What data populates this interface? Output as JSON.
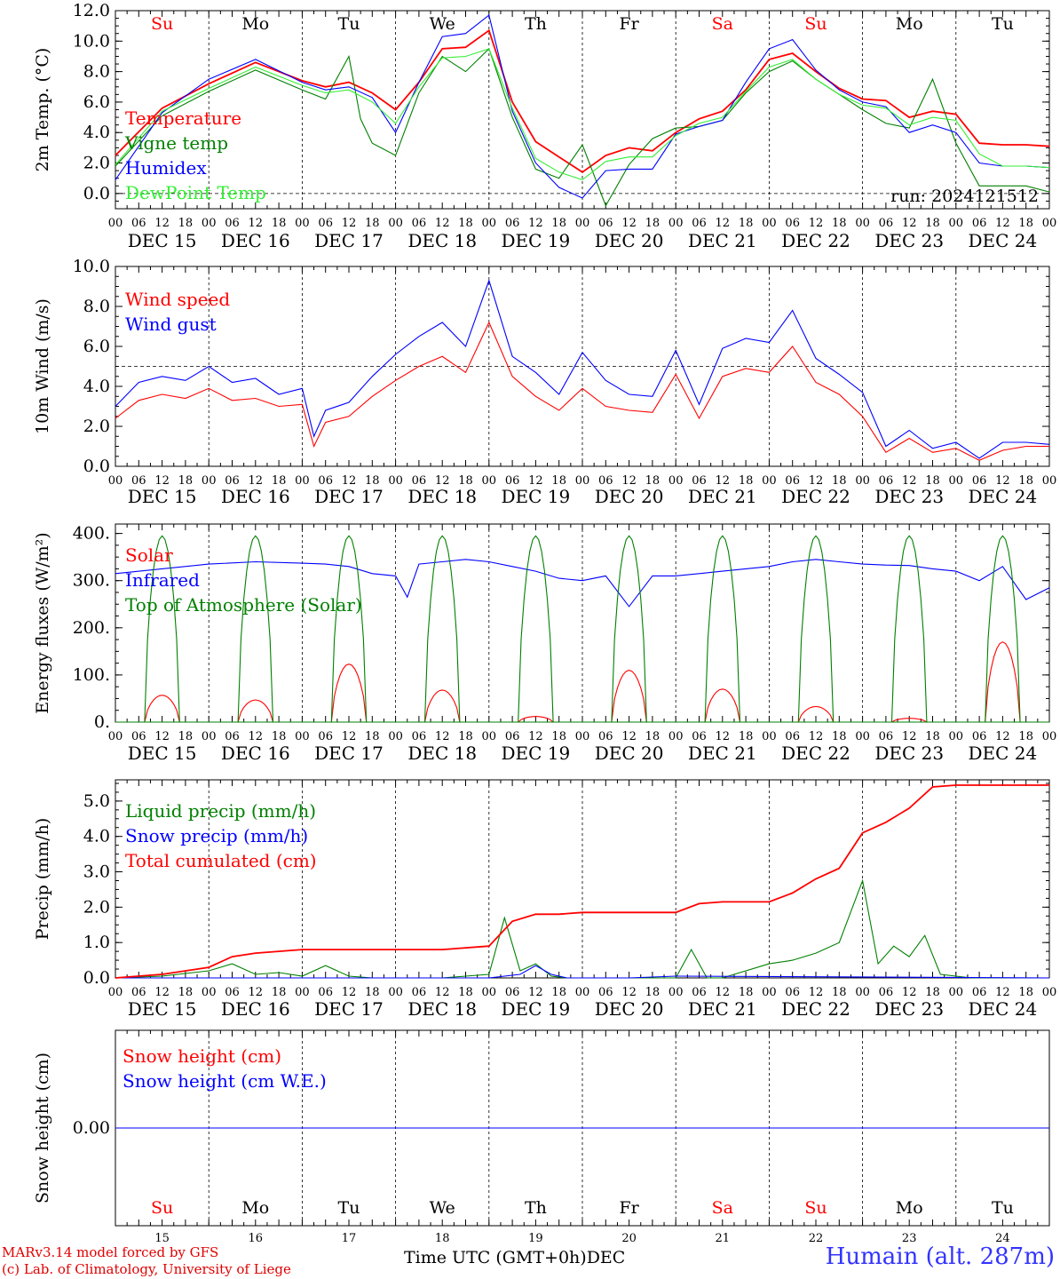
{
  "footer": {
    "model_line": "MARv3.14 model forced by GFS",
    "credit_line": "(c) Lab. of Climatology, University of Liege",
    "x_axis_title": "Time UTC (GMT+0h)",
    "month_label": "DEC",
    "station": "Humain (alt. 287m)"
  },
  "time_axis": {
    "hour_ticks": [
      "00",
      "06",
      "12",
      "18"
    ],
    "date_labels": [
      "DEC 15",
      "DEC 16",
      "DEC 17",
      "DEC 18",
      "DEC 19",
      "DEC 20",
      "DEC 21",
      "DEC 22",
      "DEC 23",
      "DEC 24"
    ],
    "day_names": [
      "Su",
      "Mo",
      "Tu",
      "We",
      "Th",
      "Fr",
      "Sa",
      "Su",
      "Mo",
      "Tu"
    ],
    "weekend": [
      true,
      false,
      false,
      false,
      false,
      false,
      true,
      true,
      false,
      false
    ],
    "day_numbers": [
      "15",
      "16",
      "17",
      "18",
      "19",
      "20",
      "21",
      "22",
      "23",
      "24"
    ],
    "hours_total": 240
  },
  "colors": {
    "red": "#ff0000",
    "green": "#008000",
    "blue": "#0000ff",
    "lightgreen": "#33ee33",
    "axis": "#000000"
  },
  "chart_data": [
    {
      "type": "line",
      "id": "temperature",
      "ylabel": "2m Temp. (°C)",
      "ylim": [
        -1,
        12
      ],
      "yticks": [
        "12.0",
        "10.0",
        "8.0",
        "6.0",
        "4.0",
        "2.0",
        "0.0"
      ],
      "ytick_values": [
        12,
        10,
        8,
        6,
        4,
        2,
        0
      ],
      "hline": 0,
      "annotation": "run: 2024121512",
      "show_day_names": true,
      "series": [
        {
          "name": "Temperature",
          "color": "red",
          "x": [
            0,
            12,
            24,
            36,
            48,
            54,
            60,
            66,
            72,
            78,
            84,
            90,
            96,
            102,
            108,
            114,
            120,
            126,
            132,
            138,
            144,
            150,
            156,
            162,
            168,
            174,
            180,
            186,
            192,
            198,
            204,
            210,
            216,
            222,
            228,
            234,
            240
          ],
          "y": [
            2.5,
            5.6,
            7.2,
            8.6,
            7.4,
            7.0,
            7.3,
            6.6,
            5.5,
            7.3,
            9.5,
            9.6,
            10.7,
            6.0,
            3.4,
            2.4,
            1.4,
            2.5,
            3.0,
            2.8,
            4.0,
            4.9,
            5.4,
            6.8,
            8.8,
            9.2,
            8.0,
            6.9,
            6.2,
            6.1,
            5.0,
            5.4,
            5.2,
            3.3,
            3.2,
            3.2,
            3.1
          ]
        },
        {
          "name": "Vigne temp",
          "color": "green",
          "x": [
            0,
            12,
            24,
            36,
            48,
            54,
            60,
            63,
            66,
            72,
            78,
            84,
            90,
            96,
            102,
            108,
            114,
            120,
            126,
            132,
            138,
            144,
            150,
            156,
            162,
            168,
            174,
            180,
            186,
            192,
            198,
            204,
            210,
            216,
            222,
            228,
            234,
            240
          ],
          "y": [
            1.8,
            5.1,
            6.7,
            8.1,
            6.8,
            6.2,
            9.0,
            4.9,
            3.3,
            2.5,
            6.6,
            9.0,
            8.0,
            9.5,
            5.0,
            1.6,
            1.0,
            3.2,
            -0.8,
            1.9,
            3.6,
            4.3,
            4.4,
            4.8,
            6.6,
            8.0,
            8.7,
            7.5,
            6.5,
            5.5,
            4.6,
            4.3,
            7.5,
            3.3,
            0.5,
            0.5,
            0.5,
            0.1
          ]
        },
        {
          "name": "Humidex",
          "color": "blue",
          "x": [
            0,
            12,
            24,
            36,
            48,
            54,
            60,
            66,
            72,
            78,
            84,
            90,
            96,
            102,
            108,
            114,
            120,
            126,
            132,
            138,
            144,
            150,
            156,
            162,
            168,
            174,
            180,
            186,
            192,
            198,
            204,
            210,
            216,
            222,
            228,
            234,
            240
          ],
          "y": [
            0.9,
            5.3,
            7.5,
            8.8,
            7.3,
            6.8,
            7.0,
            6.3,
            4.0,
            7.3,
            10.3,
            10.5,
            11.7,
            5.4,
            2.0,
            0.4,
            -0.3,
            1.5,
            1.6,
            1.6,
            3.9,
            4.4,
            4.8,
            7.3,
            9.5,
            10.1,
            8.1,
            6.8,
            6.0,
            5.7,
            4.0,
            4.5,
            4.0,
            2.0,
            1.8,
            1.8,
            1.7
          ]
        },
        {
          "name": "DewPoint Temp",
          "color": "lightgreen",
          "x": [
            0,
            12,
            24,
            36,
            48,
            54,
            60,
            66,
            72,
            78,
            84,
            90,
            96,
            102,
            108,
            114,
            120,
            126,
            132,
            138,
            144,
            150,
            156,
            162,
            168,
            174,
            180,
            186,
            192,
            198,
            204,
            210,
            216,
            222,
            228,
            234,
            240
          ],
          "y": [
            1.9,
            5.4,
            6.9,
            8.3,
            7.1,
            6.6,
            6.8,
            6.0,
            4.6,
            7.0,
            8.9,
            9.0,
            9.5,
            5.6,
            2.3,
            1.4,
            0.9,
            2.1,
            2.4,
            2.4,
            3.8,
            4.6,
            5.0,
            6.7,
            8.3,
            8.8,
            7.5,
            6.5,
            5.8,
            5.6,
            4.5,
            5.0,
            4.8,
            2.6,
            1.8,
            1.8,
            1.7
          ]
        }
      ]
    },
    {
      "type": "line",
      "id": "wind",
      "ylabel": "10m Wind (m/s)",
      "ylim": [
        0,
        10
      ],
      "yticks": [
        "10.0",
        "8.0",
        "6.0",
        "4.0",
        "2.0",
        "0.0"
      ],
      "ytick_values": [
        10,
        8,
        6,
        4,
        2,
        0
      ],
      "hline": 5,
      "series": [
        {
          "name": "Wind speed",
          "color": "red",
          "x": [
            0,
            6,
            12,
            18,
            24,
            30,
            36,
            42,
            48,
            51,
            54,
            60,
            66,
            72,
            78,
            84,
            90,
            96,
            102,
            108,
            114,
            120,
            126,
            132,
            138,
            144,
            150,
            156,
            162,
            168,
            174,
            180,
            186,
            192,
            198,
            204,
            210,
            216,
            222,
            228,
            234,
            240
          ],
          "y": [
            2.4,
            3.3,
            3.6,
            3.4,
            3.9,
            3.3,
            3.4,
            3.0,
            3.1,
            1.0,
            2.2,
            2.5,
            3.5,
            4.3,
            5.0,
            5.5,
            4.7,
            7.2,
            4.5,
            3.5,
            2.8,
            3.9,
            3.0,
            2.8,
            2.7,
            4.6,
            2.4,
            4.5,
            4.9,
            4.7,
            6.0,
            4.2,
            3.6,
            2.5,
            0.7,
            1.4,
            0.7,
            0.9,
            0.3,
            0.8,
            1.0,
            1.0
          ]
        },
        {
          "name": "Wind gust",
          "color": "blue",
          "x": [
            0,
            6,
            12,
            18,
            24,
            30,
            36,
            42,
            48,
            51,
            54,
            60,
            66,
            72,
            78,
            84,
            90,
            96,
            102,
            108,
            114,
            120,
            126,
            132,
            138,
            144,
            150,
            156,
            162,
            168,
            174,
            180,
            186,
            192,
            198,
            204,
            210,
            216,
            222,
            228,
            234,
            240
          ],
          "y": [
            3.0,
            4.2,
            4.5,
            4.3,
            5.0,
            4.2,
            4.4,
            3.6,
            3.9,
            1.5,
            2.8,
            3.2,
            4.5,
            5.6,
            6.5,
            7.2,
            6.0,
            9.3,
            5.5,
            4.7,
            3.6,
            5.7,
            4.3,
            3.6,
            3.5,
            5.8,
            3.1,
            5.9,
            6.4,
            6.2,
            7.8,
            5.4,
            4.6,
            3.7,
            1.0,
            1.8,
            0.9,
            1.2,
            0.4,
            1.2,
            1.2,
            1.1
          ]
        }
      ]
    },
    {
      "type": "line",
      "id": "energy",
      "ylabel": "Energy fluxes (W/m²)",
      "ylim": [
        0,
        420
      ],
      "yticks": [
        "400.",
        "300.",
        "200.",
        "100.",
        "0."
      ],
      "ytick_values": [
        400,
        300,
        200,
        100,
        0
      ],
      "series": [
        {
          "name": "Solar",
          "color": "red",
          "kind": "solar_peaks",
          "peaks": [
            57,
            47,
            123,
            68,
            12,
            110,
            70,
            33,
            8,
            170
          ]
        },
        {
          "name": "Infrared",
          "color": "blue",
          "x": [
            0,
            12,
            24,
            36,
            48,
            54,
            60,
            66,
            72,
            75,
            78,
            84,
            90,
            96,
            102,
            108,
            114,
            120,
            126,
            132,
            138,
            144,
            150,
            156,
            162,
            168,
            174,
            180,
            186,
            192,
            198,
            204,
            210,
            216,
            222,
            228,
            234,
            240
          ],
          "y": [
            315,
            325,
            335,
            340,
            337,
            335,
            330,
            315,
            310,
            265,
            335,
            340,
            345,
            340,
            330,
            320,
            305,
            300,
            310,
            245,
            310,
            310,
            315,
            320,
            325,
            330,
            340,
            345,
            340,
            335,
            333,
            332,
            325,
            320,
            300,
            330,
            260,
            285
          ]
        },
        {
          "name": "Top of Atmosphere (Solar)",
          "color": "green",
          "kind": "toa_peaks",
          "peak": 395
        }
      ]
    },
    {
      "type": "line",
      "id": "precip",
      "ylabel": "Precip (mm/h)",
      "ylim": [
        0,
        5.6
      ],
      "yticks": [
        "5.0",
        "4.0",
        "3.0",
        "2.0",
        "1.0",
        "0.0"
      ],
      "ytick_values": [
        5,
        4,
        3,
        2,
        1,
        0
      ],
      "series": [
        {
          "name": "Liquid precip (mm/h)",
          "color": "green",
          "x": [
            0,
            12,
            24,
            30,
            36,
            42,
            48,
            54,
            60,
            66,
            72,
            84,
            96,
            100,
            104,
            108,
            112,
            116,
            120,
            132,
            144,
            148,
            152,
            156,
            168,
            174,
            180,
            186,
            192,
            196,
            200,
            204,
            208,
            212,
            216,
            220,
            224,
            228,
            240
          ],
          "y": [
            0.0,
            0.05,
            0.2,
            0.4,
            0.1,
            0.15,
            0.05,
            0.35,
            0.05,
            0.0,
            0.0,
            0.0,
            0.1,
            1.7,
            0.2,
            0.4,
            0.05,
            0.0,
            0.0,
            0.0,
            0.0,
            0.8,
            0.0,
            0.0,
            0.4,
            0.5,
            0.7,
            1.0,
            2.75,
            0.4,
            0.9,
            0.6,
            1.2,
            0.1,
            0.05,
            0.0,
            0.0,
            0.0,
            0.0
          ]
        },
        {
          "name": "Snow precip (mm/h)",
          "color": "blue",
          "x": [
            0,
            96,
            104,
            108,
            112,
            116,
            120,
            132,
            144,
            240
          ],
          "y": [
            0,
            0,
            0.1,
            0.35,
            0.1,
            0.0,
            0.0,
            0.0,
            0.05,
            0
          ]
        },
        {
          "name": "Total cumulated (cm)",
          "color": "red",
          "x": [
            0,
            12,
            24,
            30,
            36,
            48,
            60,
            72,
            84,
            96,
            102,
            108,
            114,
            120,
            132,
            144,
            150,
            156,
            168,
            174,
            180,
            186,
            192,
            198,
            204,
            210,
            216,
            222,
            228,
            234,
            240
          ],
          "y": [
            0.0,
            0.1,
            0.3,
            0.6,
            0.7,
            0.8,
            0.8,
            0.8,
            0.8,
            0.9,
            1.6,
            1.8,
            1.8,
            1.85,
            1.85,
            1.85,
            2.1,
            2.15,
            2.15,
            2.4,
            2.8,
            3.1,
            4.1,
            4.4,
            4.8,
            5.4,
            5.45,
            5.45,
            5.45,
            5.45,
            5.45
          ]
        }
      ]
    },
    {
      "type": "line",
      "id": "snow",
      "ylabel": "Snow height (cm)",
      "ylim": [
        -1,
        1
      ],
      "yticks": [
        "0.00"
      ],
      "ytick_values": [
        0
      ],
      "series": [
        {
          "name": "Snow height (cm)",
          "color": "red",
          "x": [
            0,
            240
          ],
          "y": [
            0,
            0
          ]
        },
        {
          "name": "Snow height (cm W.E.)",
          "color": "blue",
          "x": [
            0,
            240
          ],
          "y": [
            0,
            0
          ]
        }
      ]
    }
  ]
}
